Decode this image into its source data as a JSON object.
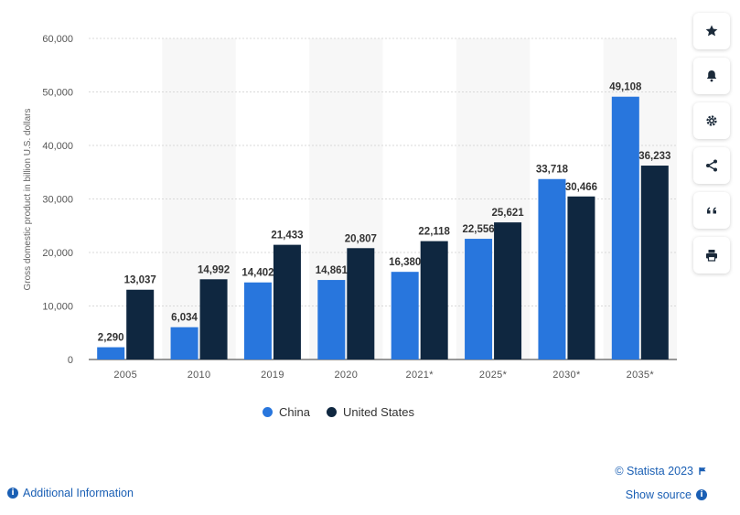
{
  "chart_data": {
    "type": "bar",
    "title": "",
    "ylabel": "Gross domestic product in billion U.S. dollars",
    "xlabel": "",
    "categories": [
      "2005",
      "2010",
      "2019",
      "2020",
      "2021*",
      "2025*",
      "2030*",
      "2035*"
    ],
    "series": [
      {
        "name": "China",
        "color": "#2876dd",
        "values": [
          2290,
          6034,
          14402,
          14861,
          16380,
          22556,
          33718,
          49108
        ],
        "labels": [
          "2,290",
          "6,034",
          "14,402",
          "14,861",
          "16,380",
          "22,556",
          "33,718",
          "49,108"
        ]
      },
      {
        "name": "United States",
        "color": "#0f2740",
        "values": [
          13037,
          14992,
          21433,
          20807,
          22118,
          25621,
          30466,
          36233
        ],
        "labels": [
          "13,037",
          "14,992",
          "21,433",
          "20,807",
          "22,118",
          "25,621",
          "30,466",
          "36,233"
        ]
      }
    ],
    "ylim": [
      0,
      60000
    ],
    "yticks": [
      0,
      10000,
      20000,
      30000,
      40000,
      50000,
      60000
    ],
    "ytick_labels": [
      "0",
      "10,000",
      "20,000",
      "30,000",
      "40,000",
      "50,000",
      "60,000"
    ],
    "grid": true,
    "legend": "bottom-center"
  },
  "legend": {
    "items": [
      {
        "label": "China",
        "color": "#2876dd"
      },
      {
        "label": "United States",
        "color": "#0f2740"
      }
    ]
  },
  "toolbar": {
    "icons": [
      "star-icon",
      "bell-icon",
      "gear-icon",
      "share-icon",
      "quote-icon",
      "print-icon"
    ]
  },
  "footer": {
    "credit": "© Statista 2023",
    "show_source": "Show source",
    "additional_info": "Additional Information"
  }
}
